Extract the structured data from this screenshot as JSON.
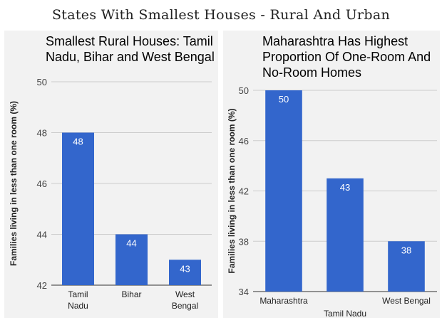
{
  "page_title": "States With Smallest Houses - Rural And Urban",
  "chart_data": [
    {
      "type": "bar",
      "title": "Smallest Rural Houses: Tamil Nadu, Bihar and West Bengal",
      "categories": [
        [
          "Tamil",
          "Nadu"
        ],
        [
          "Bihar"
        ],
        [
          "West",
          "Bengal"
        ]
      ],
      "values": [
        48,
        44,
        43
      ],
      "ylabel": "Families living in less than one room (%)",
      "xlabel": "",
      "ylim": [
        42,
        50
      ],
      "yticks": [
        42,
        44,
        46,
        48,
        50
      ],
      "color": "#3366cc",
      "grid": true
    },
    {
      "type": "bar",
      "title": "Maharashtra Has Highest Proportion Of One-Room And No-Room Homes",
      "categories": [
        [
          "Maharashtra"
        ],
        [
          "Tamil Nadu"
        ],
        [
          "West Bengal"
        ]
      ],
      "values": [
        50,
        43,
        38
      ],
      "ylabel": "Families living in less than one room (%)",
      "xlabel": "",
      "ylim": [
        34,
        50
      ],
      "yticks": [
        34,
        38,
        42,
        46,
        50
      ],
      "color": "#3366cc",
      "grid": true
    }
  ]
}
